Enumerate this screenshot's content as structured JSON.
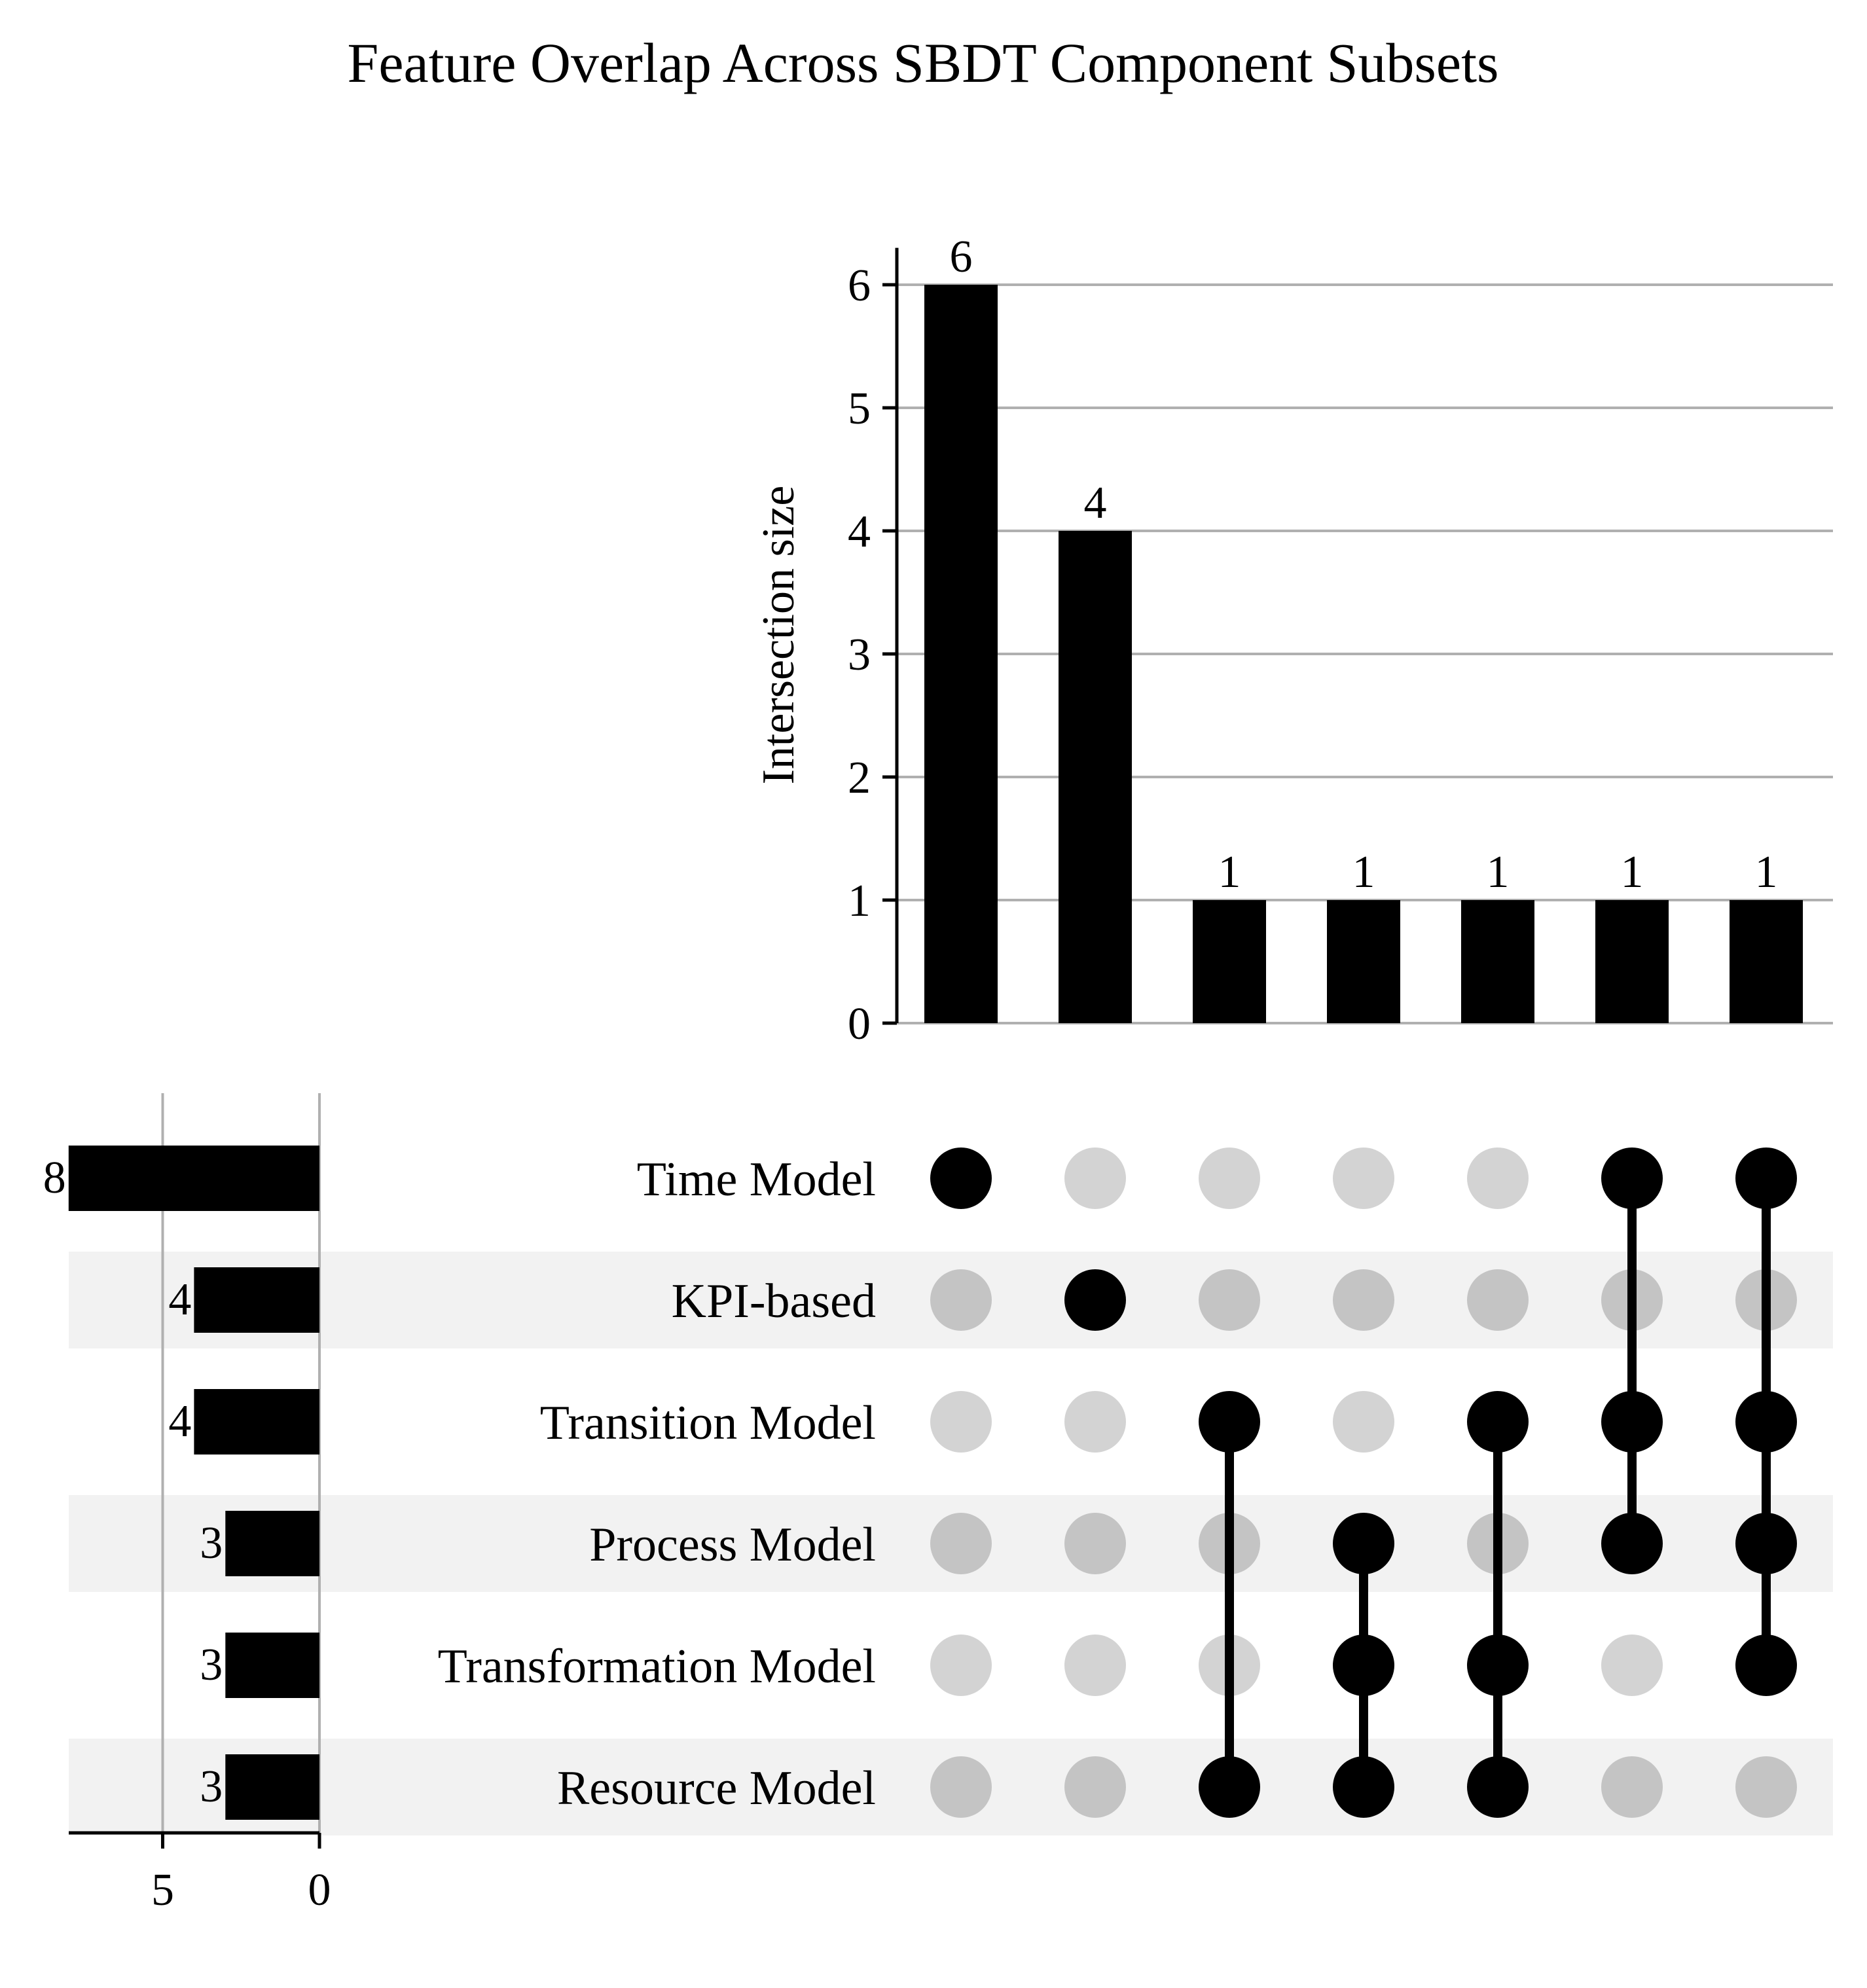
{
  "chart_data": {
    "type": "upset",
    "title": "Feature Overlap Across SBDT Component Subsets",
    "sets": [
      "Time Model",
      "KPI-based",
      "Transition Model",
      "Process Model",
      "Transformation Model",
      "Resource Model"
    ],
    "set_sizes": [
      8,
      4,
      4,
      3,
      3,
      3
    ],
    "set_size_axis": {
      "ticks": [
        5,
        0
      ],
      "range": [
        0,
        8
      ]
    },
    "intersection_axis": {
      "label": "Intersection size",
      "ticks": [
        0,
        1,
        2,
        3,
        4,
        5,
        6
      ],
      "range": [
        0,
        6.3
      ]
    },
    "intersections": [
      {
        "members": [
          "Time Model"
        ],
        "size": 6
      },
      {
        "members": [
          "KPI-based"
        ],
        "size": 4
      },
      {
        "members": [
          "Transition Model",
          "Resource Model"
        ],
        "size": 1
      },
      {
        "members": [
          "Process Model",
          "Transformation Model",
          "Resource Model"
        ],
        "size": 1
      },
      {
        "members": [
          "Transition Model",
          "Transformation Model",
          "Resource Model"
        ],
        "size": 1
      },
      {
        "members": [
          "Time Model",
          "Transition Model",
          "Process Model"
        ],
        "size": 1
      },
      {
        "members": [
          "Time Model",
          "Transition Model",
          "Process Model",
          "Transformation Model"
        ],
        "size": 1
      }
    ],
    "grid": true,
    "colors": {
      "bar": "#000000",
      "dot_active": "#000000",
      "dot_inactive_light": "#d3d3d3",
      "dot_inactive_dark": "#c4c4c4",
      "row_shade": "#f2f2f2",
      "grid": "#b0b0b0"
    }
  }
}
